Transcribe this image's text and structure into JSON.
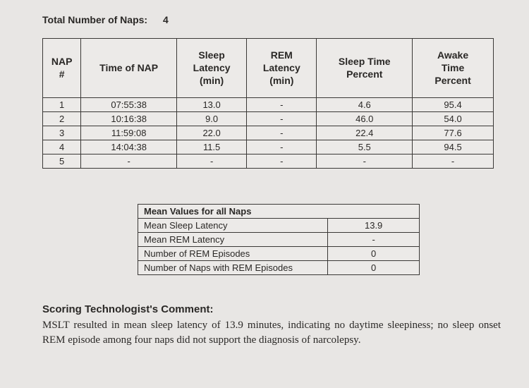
{
  "header": {
    "total_label": "Total Number of Naps:",
    "total_value": "4"
  },
  "naps_table": {
    "columns": {
      "nap_no": "NAP\n#",
      "time": "Time of NAP",
      "sleep_lat": "Sleep\nLatency\n(min)",
      "rem_lat": "REM\nLatency\n(min)",
      "sleep_pct": "Sleep Time\nPercent",
      "awake_pct": "Awake\nTime\nPercent"
    },
    "rows": [
      {
        "n": "1",
        "time": "07:55:38",
        "slat": "13.0",
        "rlat": "-",
        "stp": "4.6",
        "atp": "95.4"
      },
      {
        "n": "2",
        "time": "10:16:38",
        "slat": "9.0",
        "rlat": "-",
        "stp": "46.0",
        "atp": "54.0"
      },
      {
        "n": "3",
        "time": "11:59:08",
        "slat": "22.0",
        "rlat": "-",
        "stp": "22.4",
        "atp": "77.6"
      },
      {
        "n": "4",
        "time": "14:04:38",
        "slat": "11.5",
        "rlat": "-",
        "stp": "5.5",
        "atp": "94.5"
      },
      {
        "n": "5",
        "time": "-",
        "slat": "-",
        "rlat": "-",
        "stp": "-",
        "atp": "-"
      }
    ]
  },
  "means_table": {
    "title": "Mean Values for all Naps",
    "rows": [
      {
        "label": "Mean Sleep Latency",
        "value": "13.9"
      },
      {
        "label": "Mean REM Latency",
        "value": "-"
      },
      {
        "label": "Number of REM Episodes",
        "value": "0"
      },
      {
        "label": "Number of Naps with REM Episodes",
        "value": "0"
      }
    ]
  },
  "comment": {
    "heading": "Scoring Technologist's Comment:",
    "body": "MSLT resulted in mean sleep latency of 13.9 minutes, indicating no daytime sleepiness; no sleep onset REM episode among four naps did not support the diagnosis of narcolepsy."
  },
  "style": {
    "background_color": "#e8e6e4",
    "cell_background": "#eceae8",
    "border_color": "#3a3836",
    "text_color": "#2a2826",
    "header_font_size_pt": 14,
    "cell_font_size_pt": 13,
    "comment_font_family": "Times New Roman"
  }
}
